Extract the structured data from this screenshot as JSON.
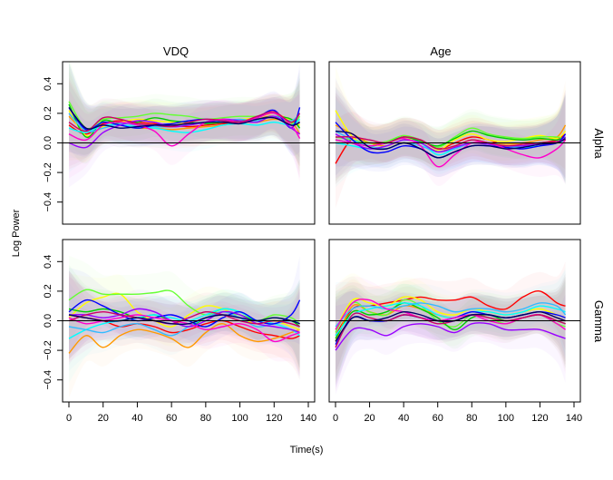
{
  "chart_data": {
    "type": "line",
    "ylabel": "Log Power",
    "xlabel": "Time(s)",
    "column_titles": [
      "VDQ",
      "Age"
    ],
    "row_titles": [
      "Alpha",
      "Gamma"
    ],
    "xlim": [
      0,
      140
    ],
    "ylim": [
      -0.5,
      0.5
    ],
    "x_ticks": [
      0,
      20,
      40,
      60,
      80,
      100,
      120,
      140
    ],
    "y_ticks": [
      -0.4,
      -0.2,
      0.0,
      0.2,
      0.4
    ],
    "y_tick_labels": [
      "−0.4",
      "−0.2",
      "0.0",
      "0.2",
      "0.4"
    ],
    "colors": [
      "#ff0000",
      "#ff9900",
      "#ffff00",
      "#66ff33",
      "#00cc00",
      "#00ffff",
      "#33bbff",
      "#0000ff",
      "#9900ff",
      "#ff00cc",
      "#cc0066",
      "#000066"
    ],
    "x": [
      0,
      10,
      20,
      30,
      40,
      50,
      60,
      70,
      80,
      90,
      100,
      110,
      120,
      130,
      135
    ],
    "panels": [
      {
        "row": 0,
        "col": 0,
        "series": [
          {
            "values": [
              0.12,
              0.06,
              0.13,
              0.15,
              0.14,
              0.13,
              0.12,
              0.11,
              0.12,
              0.13,
              0.14,
              0.16,
              0.18,
              0.12,
              0.14
            ]
          },
          {
            "values": [
              0.18,
              0.08,
              0.12,
              0.12,
              0.1,
              0.1,
              0.09,
              0.1,
              0.11,
              0.12,
              0.14,
              0.14,
              0.16,
              0.14,
              0.06
            ]
          },
          {
            "values": [
              0.22,
              0.05,
              0.11,
              0.14,
              0.16,
              0.15,
              0.14,
              0.13,
              0.14,
              0.15,
              0.16,
              0.17,
              0.2,
              0.15,
              0.12
            ]
          },
          {
            "values": [
              0.28,
              0.1,
              0.16,
              0.17,
              0.18,
              0.2,
              0.19,
              0.18,
              0.16,
              0.17,
              0.18,
              0.18,
              0.2,
              0.13,
              0.18
            ]
          },
          {
            "values": [
              0.26,
              0.04,
              0.15,
              0.13,
              0.14,
              0.17,
              0.15,
              0.14,
              0.13,
              0.14,
              0.15,
              0.16,
              0.18,
              0.16,
              0.1
            ]
          },
          {
            "values": [
              0.1,
              0.07,
              0.12,
              0.12,
              0.11,
              0.1,
              0.08,
              0.07,
              0.09,
              0.12,
              0.13,
              0.12,
              0.14,
              0.12,
              0.16
            ]
          },
          {
            "values": [
              0.2,
              0.08,
              0.1,
              0.13,
              0.12,
              0.11,
              0.11,
              0.12,
              0.14,
              0.15,
              0.16,
              0.15,
              0.18,
              0.15,
              0.2
            ]
          },
          {
            "values": [
              0.24,
              0.09,
              0.14,
              0.12,
              0.1,
              0.12,
              0.13,
              0.15,
              0.16,
              0.15,
              0.14,
              0.17,
              0.22,
              0.1,
              0.24
            ]
          },
          {
            "values": [
              0.0,
              -0.03,
              0.07,
              0.12,
              0.15,
              0.14,
              0.11,
              0.12,
              0.14,
              0.16,
              0.15,
              0.14,
              0.18,
              0.1,
              0.06
            ]
          },
          {
            "values": [
              0.06,
              0.02,
              0.12,
              0.14,
              0.12,
              0.08,
              -0.02,
              0.06,
              0.14,
              0.16,
              0.14,
              0.17,
              0.2,
              0.12,
              0.03
            ]
          },
          {
            "values": [
              0.14,
              0.08,
              0.17,
              0.16,
              0.13,
              0.12,
              0.11,
              0.14,
              0.16,
              0.15,
              0.14,
              0.18,
              0.21,
              0.14,
              0.2
            ]
          },
          {
            "values": [
              0.24,
              0.1,
              0.12,
              0.1,
              0.11,
              0.12,
              0.12,
              0.13,
              0.14,
              0.14,
              0.13,
              0.16,
              0.17,
              0.12,
              0.14
            ]
          }
        ]
      },
      {
        "row": 0,
        "col": 1,
        "series": [
          {
            "values": [
              -0.14,
              0.03,
              0.0,
              0.0,
              0.04,
              0.02,
              -0.04,
              0.0,
              0.04,
              0.02,
              -0.02,
              -0.02,
              0.0,
              0.02,
              0.06
            ]
          },
          {
            "values": [
              0.12,
              0.06,
              0.0,
              -0.02,
              0.02,
              0.0,
              -0.06,
              -0.02,
              0.02,
              0.0,
              -0.01,
              0.0,
              0.02,
              0.04,
              0.12
            ]
          },
          {
            "values": [
              0.22,
              0.04,
              -0.02,
              0.0,
              0.03,
              0.0,
              -0.05,
              0.02,
              0.06,
              0.02,
              0.01,
              0.03,
              0.05,
              0.03,
              0.08
            ]
          },
          {
            "values": [
              0.04,
              0.02,
              0.0,
              0.01,
              0.05,
              0.02,
              -0.03,
              0.04,
              0.1,
              0.06,
              0.04,
              0.03,
              0.04,
              0.04,
              0.02
            ]
          },
          {
            "values": [
              0.02,
              0.0,
              -0.02,
              0.0,
              0.04,
              0.01,
              -0.02,
              0.03,
              0.08,
              0.05,
              0.03,
              0.02,
              0.03,
              0.02,
              0.04
            ]
          },
          {
            "values": [
              0.0,
              -0.02,
              -0.04,
              -0.02,
              0.02,
              0.0,
              -0.08,
              -0.04,
              0.0,
              -0.01,
              -0.02,
              -0.03,
              -0.02,
              0.0,
              0.02
            ]
          },
          {
            "values": [
              0.08,
              0.02,
              -0.02,
              -0.04,
              0.0,
              -0.02,
              -0.06,
              -0.04,
              0.0,
              0.0,
              -0.02,
              -0.02,
              0.0,
              0.01,
              0.03
            ]
          },
          {
            "values": [
              0.14,
              0.02,
              -0.06,
              -0.06,
              -0.02,
              -0.04,
              -0.1,
              -0.06,
              -0.02,
              -0.02,
              -0.03,
              -0.04,
              -0.02,
              0.0,
              0.06
            ]
          },
          {
            "values": [
              0.06,
              0.0,
              -0.04,
              -0.02,
              0.02,
              0.0,
              -0.06,
              -0.03,
              0.0,
              -0.01,
              -0.02,
              -0.02,
              -0.01,
              0.0,
              0.04
            ]
          },
          {
            "values": [
              0.02,
              0.0,
              -0.02,
              0.0,
              0.03,
              -0.02,
              -0.16,
              -0.08,
              0.0,
              0.0,
              -0.04,
              -0.08,
              -0.1,
              -0.04,
              0.02
            ]
          },
          {
            "values": [
              0.04,
              0.04,
              0.02,
              0.0,
              0.04,
              0.02,
              -0.04,
              -0.02,
              0.02,
              0.0,
              -0.02,
              -0.01,
              0.0,
              0.01,
              0.02
            ]
          },
          {
            "values": [
              0.08,
              0.06,
              -0.03,
              -0.04,
              0.0,
              -0.04,
              -0.1,
              -0.06,
              -0.02,
              -0.02,
              -0.04,
              -0.03,
              -0.01,
              0.0,
              0.03
            ]
          }
        ]
      },
      {
        "row": 1,
        "col": 0,
        "series": [
          {
            "values": [
              0.04,
              0.02,
              0.0,
              -0.04,
              -0.02,
              -0.04,
              -0.08,
              -0.06,
              -0.02,
              0.0,
              -0.04,
              -0.08,
              -0.1,
              -0.12,
              -0.1
            ]
          },
          {
            "values": [
              -0.22,
              -0.1,
              -0.18,
              -0.1,
              -0.06,
              -0.08,
              -0.12,
              -0.18,
              -0.08,
              -0.02,
              -0.1,
              -0.14,
              -0.12,
              -0.08,
              -0.06
            ]
          },
          {
            "values": [
              0.02,
              0.12,
              0.16,
              0.18,
              0.06,
              0.0,
              -0.04,
              0.04,
              0.1,
              0.08,
              0.02,
              -0.02,
              0.0,
              -0.04,
              -0.06
            ]
          },
          {
            "values": [
              0.14,
              0.21,
              0.18,
              0.18,
              0.18,
              0.19,
              0.2,
              0.1,
              0.04,
              0.08,
              0.06,
              0.0,
              0.04,
              0.02,
              -0.02
            ]
          },
          {
            "values": [
              0.08,
              0.06,
              0.08,
              0.06,
              0.02,
              0.04,
              0.0,
              -0.04,
              0.02,
              0.06,
              0.04,
              0.0,
              0.02,
              0.0,
              -0.04
            ]
          },
          {
            "values": [
              -0.12,
              -0.06,
              -0.02,
              0.0,
              0.02,
              0.04,
              0.02,
              0.0,
              0.04,
              0.08,
              0.06,
              0.0,
              -0.02,
              -0.06,
              -0.1
            ]
          },
          {
            "values": [
              -0.04,
              -0.06,
              -0.08,
              -0.04,
              -0.02,
              -0.06,
              -0.1,
              -0.04,
              0.02,
              0.06,
              0.02,
              -0.04,
              -0.02,
              0.0,
              -0.02
            ]
          },
          {
            "values": [
              0.06,
              0.14,
              0.1,
              0.04,
              0.0,
              0.02,
              0.04,
              0.0,
              -0.04,
              0.02,
              0.06,
              0.0,
              -0.02,
              0.04,
              0.14
            ]
          },
          {
            "values": [
              0.04,
              0.04,
              0.02,
              0.04,
              0.08,
              0.06,
              0.0,
              -0.04,
              0.0,
              0.06,
              0.04,
              -0.02,
              -0.04,
              -0.06,
              -0.08
            ]
          },
          {
            "values": [
              0.02,
              -0.02,
              0.0,
              0.02,
              0.04,
              0.02,
              0.0,
              -0.02,
              -0.06,
              -0.04,
              -0.02,
              -0.06,
              -0.14,
              -0.1,
              -0.08
            ]
          },
          {
            "values": [
              0.0,
              0.04,
              0.06,
              0.04,
              0.02,
              0.0,
              -0.02,
              0.02,
              0.06,
              0.04,
              0.0,
              -0.02,
              0.0,
              -0.02,
              -0.04
            ]
          },
          {
            "values": [
              0.04,
              0.02,
              0.0,
              0.0,
              0.02,
              0.0,
              -0.02,
              -0.02,
              0.02,
              0.04,
              0.02,
              0.0,
              0.02,
              0.0,
              -0.02
            ]
          }
        ]
      },
      {
        "row": 1,
        "col": 1,
        "series": [
          {
            "values": [
              -0.1,
              0.08,
              0.1,
              0.12,
              0.14,
              0.16,
              0.14,
              0.14,
              0.16,
              0.1,
              0.08,
              0.16,
              0.2,
              0.12,
              0.1
            ]
          },
          {
            "values": [
              -0.14,
              0.1,
              0.06,
              0.04,
              0.1,
              0.08,
              0.04,
              0.02,
              0.06,
              0.04,
              0.02,
              0.04,
              0.06,
              0.02,
              0.0
            ]
          },
          {
            "values": [
              -0.06,
              0.14,
              0.12,
              0.1,
              0.16,
              0.14,
              0.06,
              0.04,
              0.08,
              0.06,
              0.04,
              0.06,
              0.08,
              0.04,
              0.02
            ]
          },
          {
            "values": [
              -0.08,
              0.12,
              0.06,
              0.04,
              0.14,
              0.1,
              0.0,
              -0.04,
              0.04,
              0.02,
              -0.02,
              0.02,
              0.04,
              -0.02,
              -0.04
            ]
          },
          {
            "values": [
              -0.12,
              0.06,
              0.04,
              0.06,
              0.12,
              0.08,
              0.02,
              -0.06,
              0.02,
              0.04,
              0.0,
              0.02,
              0.04,
              0.0,
              -0.02
            ]
          },
          {
            "values": [
              -0.1,
              0.04,
              0.08,
              0.1,
              0.12,
              0.1,
              0.04,
              0.02,
              0.06,
              0.06,
              0.04,
              0.06,
              0.1,
              0.08,
              0.06
            ]
          },
          {
            "values": [
              -0.04,
              0.08,
              0.1,
              0.08,
              0.1,
              0.12,
              0.1,
              0.06,
              0.08,
              0.08,
              0.06,
              0.08,
              0.12,
              0.1,
              0.04
            ]
          },
          {
            "values": [
              -0.16,
              0.02,
              0.0,
              0.0,
              0.04,
              0.02,
              0.0,
              0.02,
              0.06,
              0.04,
              0.02,
              0.04,
              0.06,
              0.04,
              0.02
            ]
          },
          {
            "values": [
              -0.2,
              -0.06,
              -0.06,
              -0.1,
              -0.04,
              -0.02,
              -0.04,
              -0.08,
              -0.02,
              -0.02,
              -0.06,
              -0.06,
              -0.06,
              -0.1,
              -0.12
            ]
          },
          {
            "values": [
              -0.06,
              0.12,
              0.14,
              0.08,
              0.06,
              0.02,
              0.0,
              0.02,
              0.04,
              0.0,
              -0.02,
              0.02,
              0.04,
              -0.02,
              -0.06
            ]
          },
          {
            "values": [
              -0.18,
              0.04,
              0.02,
              0.0,
              0.04,
              0.02,
              -0.02,
              0.0,
              0.04,
              0.02,
              0.0,
              0.02,
              0.04,
              0.0,
              -0.02
            ]
          },
          {
            "values": [
              -0.14,
              0.02,
              0.0,
              0.02,
              0.06,
              0.04,
              0.0,
              0.0,
              0.04,
              0.04,
              0.02,
              0.04,
              0.06,
              0.02,
              0.0
            ]
          }
        ]
      }
    ]
  }
}
